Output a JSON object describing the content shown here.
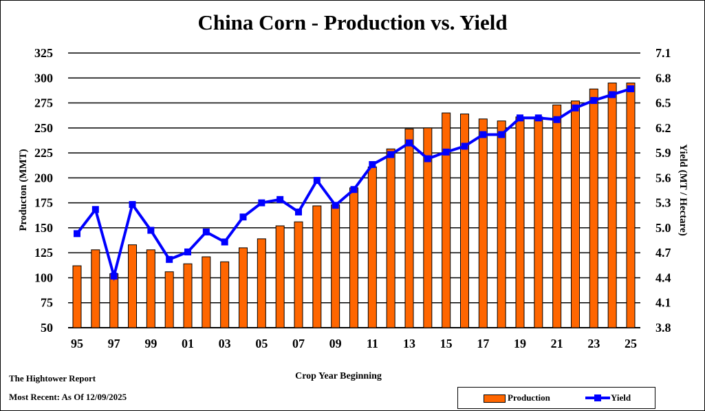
{
  "chart_data": {
    "type": "bar+line",
    "title": "China Corn - Production vs. Yield",
    "xlabel": "Crop Year Beginning",
    "ylabel_left": "Producton (MMT)",
    "ylabel_right": "Yield (MT / Hectare)",
    "ylim_left": [
      50,
      325
    ],
    "ylim_right": [
      3.8,
      7.1
    ],
    "yticks_left": [
      "50",
      "75",
      "100",
      "125",
      "150",
      "175",
      "200",
      "225",
      "250",
      "275",
      "300",
      "325"
    ],
    "yticks_right": [
      "3.8",
      "4.1",
      "4.4",
      "4.7",
      "5.0",
      "5.3",
      "5.6",
      "5.9",
      "6.2",
      "6.5",
      "6.8",
      "7.1"
    ],
    "x": [
      "95",
      "96",
      "97",
      "98",
      "99",
      "00",
      "01",
      "02",
      "03",
      "04",
      "05",
      "06",
      "07",
      "08",
      "09",
      "10",
      "11",
      "12",
      "13",
      "14",
      "15",
      "16",
      "17",
      "18",
      "19",
      "20",
      "21",
      "22",
      "23",
      "24",
      "25"
    ],
    "xtick_labels": [
      "95",
      "97",
      "99",
      "01",
      "03",
      "05",
      "07",
      "09",
      "11",
      "13",
      "15",
      "17",
      "19",
      "21",
      "23",
      "25"
    ],
    "grid": true,
    "legend_position": "bottom-right",
    "series": [
      {
        "name": "Production",
        "type": "bar",
        "axis": "left",
        "color": "#ff6600",
        "values": [
          112,
          128,
          104,
          133,
          128,
          106,
          114,
          121,
          116,
          130,
          139,
          152,
          156,
          172,
          173,
          190,
          211,
          229,
          249,
          250,
          265,
          264,
          259,
          257,
          261,
          261,
          273,
          277,
          289,
          295,
          295
        ]
      },
      {
        "name": "Yield",
        "type": "line",
        "axis": "right",
        "color": "#0000ff",
        "values": [
          4.93,
          5.22,
          4.42,
          5.28,
          4.97,
          4.62,
          4.71,
          4.95,
          4.83,
          5.13,
          5.3,
          5.34,
          5.19,
          5.57,
          5.27,
          5.46,
          5.76,
          5.88,
          6.02,
          5.83,
          5.91,
          5.98,
          6.12,
          6.12,
          6.32,
          6.32,
          6.3,
          6.44,
          6.53,
          6.6,
          6.67
        ]
      }
    ]
  },
  "footer": {
    "source": "The Hightower Report",
    "recent": "Most Recent: As Of 12/09/2025"
  }
}
